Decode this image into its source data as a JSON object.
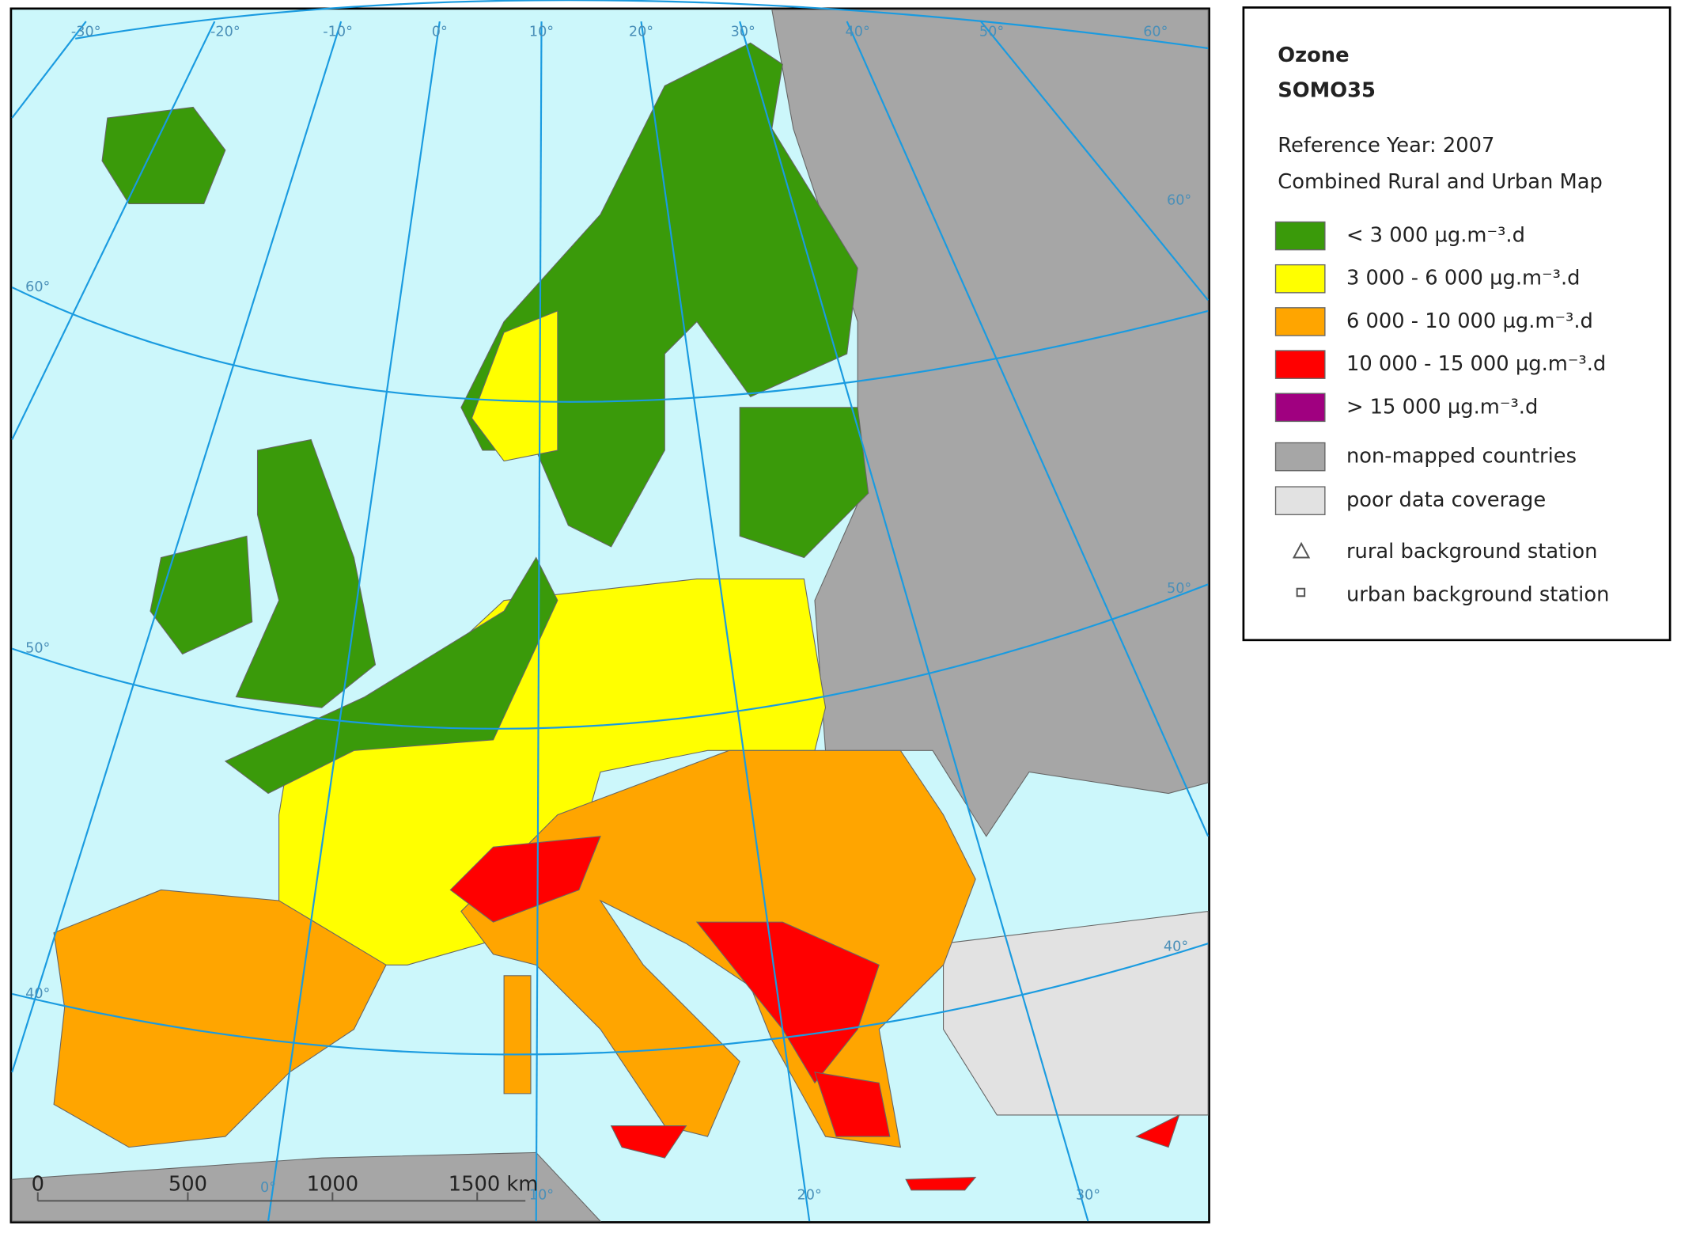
{
  "legend": {
    "title": "Ozone",
    "subtitle": "SOMO35",
    "reference": "Reference Year: 2007",
    "map_type": "Combined Rural and Urban Map",
    "items": [
      {
        "label": "< 3 000 µg.m⁻³.d",
        "color": "#3a9a0a"
      },
      {
        "label": "3 000 - 6 000 µg.m⁻³.d",
        "color": "#ffff00"
      },
      {
        "label": "6 000 - 10 000 µg.m⁻³.d",
        "color": "#ffa500"
      },
      {
        "label": "10 000 - 15 000 µg.m⁻³.d",
        "color": "#ff0000"
      },
      {
        "label": "> 15 000 µg.m⁻³.d",
        "color": "#a00080"
      },
      {
        "label": "non-mapped countries",
        "color": "#a6a6a6"
      },
      {
        "label": "poor data coverage",
        "color": "#e2e2e2"
      }
    ],
    "stations": [
      "rural background station",
      "urban background station"
    ]
  },
  "graticule": {
    "top": [
      "-30°",
      "-20°",
      "-10°",
      "0°",
      "10°",
      "20°",
      "30°",
      "40°",
      "50°",
      "60°"
    ],
    "left": [
      "60°",
      "50°",
      "40°"
    ],
    "right": [
      "60°",
      "50°",
      "40°"
    ],
    "bottom": [
      "0°",
      "10°",
      "20°",
      "30°"
    ]
  },
  "scale_bar": [
    "0",
    "500",
    "1000",
    "1500 km"
  ]
}
